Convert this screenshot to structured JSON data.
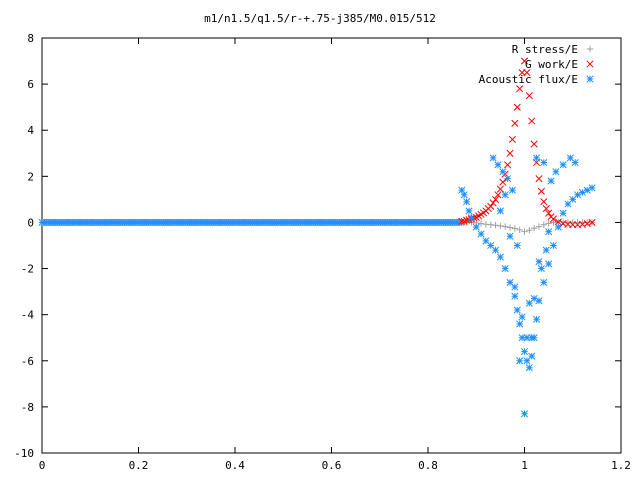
{
  "chart_data": {
    "type": "scatter",
    "title": "m1/n1.5/q1.5/r-+.75-j385/M0.015/512",
    "xlabel": "",
    "ylabel": "",
    "xlim": [
      0,
      1.2
    ],
    "ylim": [
      -10,
      8
    ],
    "x_ticks": [
      "0",
      "0.2",
      "0.4",
      "0.6",
      "0.8",
      "1",
      "1.2"
    ],
    "y_ticks": [
      "-10",
      "-8",
      "-6",
      "-4",
      "-2",
      "0",
      "2",
      "4",
      "6",
      "8"
    ],
    "x_tick_values": [
      0,
      0.2,
      0.4,
      0.6,
      0.8,
      1.0,
      1.2
    ],
    "y_tick_values": [
      -10,
      -8,
      -6,
      -4,
      -2,
      0,
      2,
      4,
      6,
      8
    ],
    "grid": false,
    "legend_position": "top-right",
    "series": [
      {
        "name": "R stress/E",
        "marker": "plus",
        "color": "#a0a0a0",
        "x": [
          0.87,
          0.88,
          0.89,
          0.9,
          0.91,
          0.92,
          0.93,
          0.94,
          0.95,
          0.96,
          0.97,
          0.98,
          0.99,
          1.0,
          1.01,
          1.02,
          1.03,
          1.04,
          1.05,
          1.06,
          1.07,
          1.08,
          1.09,
          1.1,
          1.11,
          1.12,
          1.13,
          1.14
        ],
        "y": [
          0.0,
          0.0,
          0.0,
          -0.02,
          -0.05,
          -0.08,
          -0.1,
          -0.12,
          -0.15,
          -0.18,
          -0.22,
          -0.26,
          -0.32,
          -0.4,
          -0.34,
          -0.25,
          -0.18,
          -0.1,
          -0.04,
          0.0,
          0.02,
          0.02,
          0.01,
          0.0,
          0.0,
          0.0,
          0.0,
          0.0
        ]
      },
      {
        "name": "G work/E",
        "marker": "cross",
        "color": "#ff0000",
        "x": [
          0.87,
          0.875,
          0.88,
          0.885,
          0.89,
          0.895,
          0.9,
          0.905,
          0.91,
          0.915,
          0.92,
          0.925,
          0.93,
          0.935,
          0.94,
          0.945,
          0.95,
          0.955,
          0.96,
          0.965,
          0.97,
          0.975,
          0.98,
          0.985,
          0.99,
          0.995,
          1.0,
          1.005,
          1.01,
          1.015,
          1.02,
          1.025,
          1.03,
          1.035,
          1.04,
          1.045,
          1.05,
          1.055,
          1.06,
          1.07,
          1.08,
          1.09,
          1.1,
          1.11,
          1.12,
          1.13,
          1.14
        ],
        "y": [
          0.05,
          0.05,
          0.1,
          0.12,
          0.15,
          0.2,
          0.22,
          0.28,
          0.35,
          0.42,
          0.5,
          0.6,
          0.7,
          0.85,
          1.0,
          1.2,
          1.45,
          1.75,
          2.1,
          2.5,
          3.0,
          3.6,
          4.3,
          5.0,
          5.8,
          6.5,
          7.0,
          6.5,
          5.5,
          4.4,
          3.4,
          2.6,
          1.9,
          1.35,
          0.9,
          0.6,
          0.4,
          0.25,
          0.15,
          0.02,
          -0.05,
          -0.08,
          -0.1,
          -0.1,
          -0.08,
          -0.05,
          0.0
        ]
      },
      {
        "name": "Acoustic flux/E",
        "marker": "star",
        "color": "#1e90ff",
        "x": [
          0.87,
          0.875,
          0.88,
          0.885,
          0.89,
          0.9,
          0.91,
          0.92,
          0.93,
          0.94,
          0.95,
          0.96,
          0.97,
          0.98,
          0.985,
          0.99,
          0.995,
          1.0,
          1.005,
          1.01,
          1.015,
          1.02,
          1.025,
          1.03,
          1.04,
          1.05,
          1.06,
          1.07,
          1.08,
          1.09,
          1.1,
          1.11,
          1.12,
          1.13,
          1.14,
          0.935,
          0.945,
          0.955,
          0.965,
          0.975,
          0.99,
          1.0,
          1.015,
          1.03,
          1.045,
          1.055,
          1.065,
          1.08,
          1.095,
          1.105,
          0.95,
          0.97,
          0.98,
          0.995,
          1.005,
          1.02,
          1.035,
          1.05,
          0.96,
          0.985,
          1.01,
          1.025,
          1.04
        ],
        "y": [
          1.4,
          1.2,
          0.9,
          0.5,
          0.2,
          -0.2,
          -0.5,
          -0.8,
          -1.0,
          -1.2,
          -1.5,
          -2.0,
          -2.6,
          -3.2,
          -3.8,
          -4.4,
          -5.0,
          -5.6,
          -6.0,
          -6.3,
          -5.8,
          -5.0,
          -4.2,
          -3.4,
          -2.6,
          -1.8,
          -1.0,
          -0.2,
          0.4,
          0.8,
          1.0,
          1.2,
          1.3,
          1.4,
          1.5,
          2.8,
          2.5,
          2.2,
          1.9,
          1.4,
          -6.0,
          -8.3,
          -5.0,
          -1.7,
          -1.2,
          1.8,
          2.2,
          2.5,
          2.8,
          2.6,
          0.5,
          -0.6,
          -2.8,
          -4.1,
          -5.0,
          -3.3,
          -2.0,
          -0.4,
          1.2,
          -1.0,
          -3.5,
          2.8,
          2.6
        ]
      }
    ]
  }
}
